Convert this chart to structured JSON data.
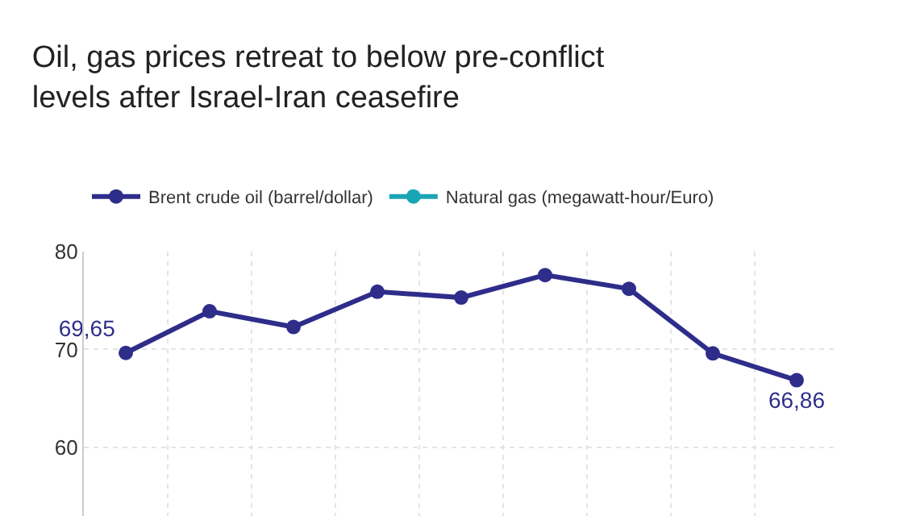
{
  "chart_data": {
    "type": "line",
    "title": "Oil, gas prices retreat to below pre-conflict\nlevels after Israel-Iran ceasefire",
    "categories": [
      null,
      null,
      null,
      null,
      null,
      null,
      null,
      null,
      null
    ],
    "series": [
      {
        "name": "Brent crude oil (barrel/dollar)",
        "color": "#2e2d8a",
        "values": [
          69.65,
          73.9,
          72.3,
          75.9,
          75.3,
          77.6,
          76.2,
          69.6,
          66.86
        ],
        "value_labels": [
          "69,65",
          null,
          null,
          null,
          null,
          null,
          null,
          null,
          "66,86"
        ]
      },
      {
        "name": "Natural gas (megawatt-hour/Euro)",
        "color": "#1aa5b5",
        "values": [
          null,
          null,
          null,
          null,
          null,
          null,
          null,
          null,
          null
        ]
      }
    ],
    "ylim": [
      53,
      80
    ],
    "yticks": [
      60,
      70,
      80
    ],
    "grid": true,
    "legend": "top left",
    "marker": "circle",
    "line_style": "solid",
    "tick_labels": "y"
  }
}
